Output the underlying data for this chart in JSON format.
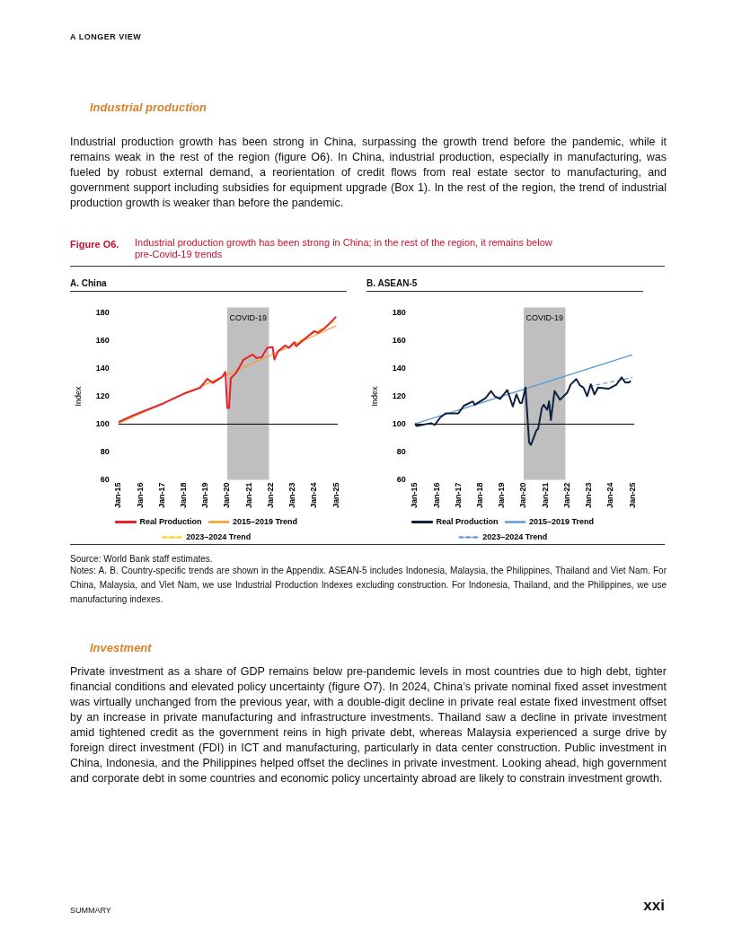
{
  "chart_data": [
    {
      "type": "other",
      "annotations": [
        "A LONGER VIEW",
        "Industrial production",
        "Industrial production growth has been strong in China, surpassing the growth trend before the pandemic, while it remains weak in the rest of the region (figure O6). In China, industrial production, especially in manufacturing, was fueled by robust external demand, a reorientation of credit flows from real estate sector to manufacturing, and government support including subsidies for equipment upgrade (Box 1). In the rest of the region, the trend of industrial production growth is weaker than before the pandemic.",
        "Figure O6.",
        "Industrial production growth has been strong in China; in the rest of the region, it remains below pre-Covid-19 trends"
      ]
    },
    {
      "type": "line",
      "title": "A. China",
      "ylabel": "Index",
      "marker": "none",
      "legend": "bottom",
      "xlim": [
        "2015-01",
        "2025-02"
      ],
      "xticks": [
        {
          "value": "2015-01",
          "label": "Jan-15"
        },
        {
          "value": "2016-01",
          "label": "Jan-16"
        },
        {
          "value": "2017-01",
          "label": "Jan-17"
        },
        {
          "value": "2018-01",
          "label": "Jan-18"
        },
        {
          "value": "2019-01",
          "label": "Jan-19"
        },
        {
          "value": "2020-01",
          "label": "Jan-20"
        },
        {
          "value": "2021-01",
          "label": "Jan-21"
        },
        {
          "value": "2022-01",
          "label": "Jan-22"
        },
        {
          "value": "2023-01",
          "label": "Jan-23"
        },
        {
          "value": "2024-01",
          "label": "Jan-24"
        },
        {
          "value": "2025-01",
          "label": "Jan-25"
        }
      ],
      "ylim": [
        60,
        180
      ],
      "yticks": [
        60,
        80,
        100,
        120,
        140,
        160,
        180
      ],
      "bands": [
        {
          "axis": "x",
          "from": "2020-01",
          "to": "2021-12",
          "label": "COVID-19",
          "color": "#bfbfbf"
        }
      ],
      "ref_lines": [
        {
          "axis": "y",
          "value": 100,
          "color": "#000000"
        }
      ],
      "series": [
        {
          "name": "Real Production",
          "color": "#e8202a",
          "line_style": "solid",
          "x": [
            "2015-01",
            "2015-10",
            "2017-02",
            "2018-02",
            "2018-10",
            "2019-02",
            "2019-05",
            "2019-10",
            "2019-12",
            "2020-01",
            "2020-02",
            "2020-03",
            "2020-06",
            "2020-10",
            "2021-03",
            "2021-05",
            "2021-08",
            "2021-11",
            "2022-02",
            "2022-03",
            "2022-05",
            "2022-09",
            "2022-11",
            "2023-02",
            "2023-03",
            "2023-08",
            "2024-01",
            "2024-03",
            "2024-07",
            "2025-01"
          ],
          "values": [
            101.5,
            106.8,
            115,
            122.4,
            126,
            132.5,
            129.6,
            133.7,
            137.5,
            111.6,
            111.6,
            133,
            137,
            146.4,
            150,
            147.6,
            148,
            154.8,
            155.5,
            146.4,
            152.4,
            156.5,
            154.8,
            158.9,
            156,
            161.5,
            166.8,
            165.6,
            169.2,
            177.1
          ]
        },
        {
          "name": "2015–2019 Trend",
          "color": "#f39c28",
          "line_style": "solid",
          "x": [
            "2015-01",
            "2025-01"
          ],
          "values": [
            100.5,
            170.6
          ]
        },
        {
          "name": "2023–2024 Trend",
          "color": "#ffd21e",
          "line_style": "dashed",
          "x": [
            "2023-01",
            "2025-01"
          ],
          "values": [
            157,
            174.5
          ]
        }
      ]
    },
    {
      "type": "line",
      "title": "B. ASEAN-5",
      "ylabel": "Index",
      "marker": "none",
      "legend": "bottom",
      "xlim": [
        "2015-01",
        "2025-02"
      ],
      "xticks": [
        {
          "value": "2015-01",
          "label": "Jan-15"
        },
        {
          "value": "2016-01",
          "label": "Jan-16"
        },
        {
          "value": "2017-01",
          "label": "Jan-17"
        },
        {
          "value": "2018-01",
          "label": "Jan-18"
        },
        {
          "value": "2019-01",
          "label": "Jan-19"
        },
        {
          "value": "2020-01",
          "label": "Jan-20"
        },
        {
          "value": "2021-01",
          "label": "Jan-21"
        },
        {
          "value": "2022-01",
          "label": "Jan-22"
        },
        {
          "value": "2023-01",
          "label": "Jan-23"
        },
        {
          "value": "2024-01",
          "label": "Jan-24"
        },
        {
          "value": "2025-01",
          "label": "Jan-25"
        }
      ],
      "ylim": [
        60,
        180
      ],
      "yticks": [
        60,
        80,
        100,
        120,
        140,
        160,
        180
      ],
      "bands": [
        {
          "axis": "x",
          "from": "2020-01",
          "to": "2021-12",
          "label": "COVID-19",
          "color": "#bfbfbf"
        }
      ],
      "ref_lines": [
        {
          "axis": "y",
          "value": 100,
          "color": "#000000"
        }
      ],
      "series": [
        {
          "name": "Real Production",
          "color": "#0d2240",
          "line_style": "solid",
          "x": [
            "2015-01",
            "2015-02",
            "2015-10",
            "2015-12",
            "2016-03",
            "2016-06",
            "2017-01",
            "2017-04",
            "2017-09",
            "2017-10",
            "2018-04",
            "2018-07",
            "2018-09",
            "2018-12",
            "2019-04",
            "2019-07",
            "2019-09",
            "2019-11",
            "2019-12",
            "2020-02",
            "2020-04",
            "2020-05",
            "2020-08",
            "2020-09",
            "2020-11",
            "2020-12",
            "2021-02",
            "2021-03",
            "2021-04",
            "2021-06",
            "2021-07",
            "2021-09",
            "2022-01",
            "2022-03",
            "2022-06",
            "2022-08",
            "2022-10",
            "2022-12",
            "2023-02",
            "2023-04",
            "2023-06",
            "2023-12",
            "2024-04",
            "2024-07",
            "2024-09",
            "2024-11",
            "2024-12"
          ],
          "values": [
            100.2,
            98.7,
            100.7,
            99.4,
            104.8,
            107.7,
            107.7,
            113.2,
            116.3,
            113.9,
            118.8,
            123.8,
            120.1,
            118.1,
            124.5,
            112.7,
            121.4,
            115.2,
            115.2,
            126.2,
            86.8,
            85.1,
            95.5,
            96.7,
            111.5,
            113.9,
            110.3,
            116.4,
            102.9,
            123.8,
            121.8,
            117.6,
            122.6,
            128.6,
            132.4,
            127.9,
            126.2,
            120.1,
            128.6,
            121.3,
            126.2,
            125.5,
            128.2,
            133.6,
            129.9,
            129.9,
            131.1
          ]
        },
        {
          "name": "2015–2019 Trend",
          "color": "#5b9bd5",
          "line_style": "solid",
          "x": [
            "2015-01",
            "2025-01"
          ],
          "values": [
            100.2,
            149.9
          ]
        },
        {
          "name": "2023–2024 Trend",
          "color": "#6f9fd0",
          "line_style": "dashed",
          "x": [
            "2023-01",
            "2025-01"
          ],
          "values": [
            127,
            133.5
          ]
        }
      ]
    },
    {
      "type": "other",
      "annotations": [
        "Source: World Bank staff estimates.",
        "Notes: A. B. Country-specific trends are shown in the Appendix. ASEAN-5 includes Indonesia, Malaysia, the Philippines, Thailand and Viet Nam. For China, Malaysia, and Viet Nam, we use Industrial Production Indexes excluding construction. For Indonesia, Thailand, and the Philippines, we use manufacturing indexes.",
        "Investment",
        "Private investment as a share of GDP remains below pre-pandemic levels in most countries due to high debt, tighter financial conditions and elevated policy uncertainty (figure O7). In 2024, China’s private nominal fixed asset investment was virtually unchanged from the previous year, with a double-digit decline in private real estate fixed investment offset by an increase in private manufacturing and infrastructure investments. Thailand saw a decline in private investment amid tightened credit as the government reins in high private debt, whereas Malaysia experienced a surge drive by foreign direct investment (FDI) in ICT and manufacturing, particularly in data center construction. Public investment in China, Indonesia, and the Philippines helped offset the declines in private investment. Looking ahead, high government and corporate debt in some countries and economic policy uncertainty abroad are likely to constrain investment growth.",
        "SUMMARY",
        "xxi"
      ]
    }
  ]
}
